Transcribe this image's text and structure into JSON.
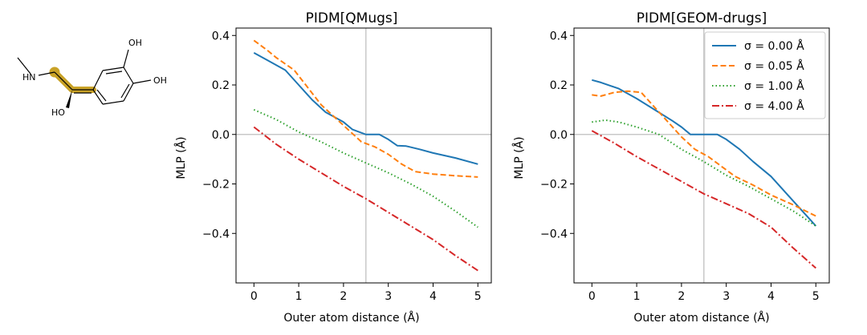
{
  "molecule": {
    "labels": [
      "OH",
      "OH",
      "HN",
      "HO"
    ],
    "highlight_color": "#c9a227"
  },
  "chart_data": [
    {
      "type": "line",
      "title": "PIDM[QMugs]",
      "xlabel": "Outer atom distance (Å)",
      "ylabel": "MLP (Å)",
      "xlim": [
        -0.4,
        5.3
      ],
      "ylim": [
        -0.6,
        0.43
      ],
      "xticks": [
        0,
        1,
        2,
        3,
        4,
        5
      ],
      "yticks": [
        -0.4,
        -0.2,
        0.0,
        0.2,
        0.4
      ],
      "reference_lines": {
        "x": 2.5,
        "y": 0.0
      },
      "legend": false,
      "series": [
        {
          "color": "#1f77b4",
          "dash": "solid",
          "x": [
            0,
            0.3,
            0.7,
            1.0,
            1.3,
            1.6,
            2.0,
            2.2,
            2.5,
            2.8,
            3.0,
            3.2,
            3.4,
            3.7,
            4.0,
            4.5,
            5.0
          ],
          "y": [
            0.33,
            0.3,
            0.26,
            0.2,
            0.14,
            0.09,
            0.05,
            0.02,
            0.0,
            0.0,
            -0.02,
            -0.045,
            -0.047,
            -0.06,
            -0.075,
            -0.095,
            -0.12
          ]
        },
        {
          "color": "#ff7f0e",
          "dash": "dashed",
          "x": [
            0,
            0.3,
            0.5,
            0.9,
            1.2,
            1.5,
            1.8,
            2.1,
            2.4,
            2.7,
            3.0,
            3.3,
            3.6,
            4.0,
            4.5,
            5.0
          ],
          "y": [
            0.38,
            0.34,
            0.31,
            0.26,
            0.19,
            0.12,
            0.07,
            0.02,
            -0.03,
            -0.05,
            -0.08,
            -0.12,
            -0.15,
            -0.16,
            -0.167,
            -0.172
          ]
        },
        {
          "color": "#2ca02c",
          "dash": "dotted",
          "x": [
            0,
            0.5,
            1.0,
            1.5,
            2.0,
            2.5,
            3.0,
            3.5,
            4.0,
            4.5,
            5.0
          ],
          "y": [
            0.1,
            0.06,
            0.01,
            -0.03,
            -0.075,
            -0.115,
            -0.155,
            -0.2,
            -0.25,
            -0.31,
            -0.375
          ]
        },
        {
          "color": "#d62728",
          "dash": "dashdot",
          "x": [
            0,
            0.5,
            1.0,
            1.5,
            2.0,
            2.5,
            3.0,
            3.5,
            4.0,
            4.5,
            5.0
          ],
          "y": [
            0.03,
            -0.04,
            -0.1,
            -0.155,
            -0.21,
            -0.26,
            -0.315,
            -0.37,
            -0.425,
            -0.49,
            -0.55
          ]
        }
      ]
    },
    {
      "type": "line",
      "title": "PIDM[GEOM-drugs]",
      "xlabel": "Outer atom distance (Å)",
      "ylabel": "MLP (Å)",
      "xlim": [
        -0.4,
        5.3
      ],
      "ylim": [
        -0.6,
        0.43
      ],
      "xticks": [
        0,
        1,
        2,
        3,
        4,
        5
      ],
      "yticks": [
        -0.4,
        -0.2,
        0.0,
        0.2,
        0.4
      ],
      "reference_lines": {
        "x": 2.5,
        "y": 0.0
      },
      "legend": true,
      "legend_position": "top-right",
      "series": [
        {
          "name": "σ = 0.00 Å",
          "color": "#1f77b4",
          "dash": "solid",
          "x": [
            0,
            0.2,
            0.6,
            1.0,
            1.4,
            1.8,
            2.0,
            2.2,
            2.5,
            2.8,
            3.0,
            3.3,
            3.6,
            4.0,
            4.4,
            4.8,
            5.0
          ],
          "y": [
            0.22,
            0.21,
            0.185,
            0.145,
            0.1,
            0.055,
            0.03,
            0.0,
            0.0,
            0.0,
            -0.02,
            -0.06,
            -0.11,
            -0.17,
            -0.25,
            -0.33,
            -0.37
          ]
        },
        {
          "name": "σ = 0.05 Å",
          "color": "#ff7f0e",
          "dash": "dashed",
          "x": [
            0,
            0.2,
            0.5,
            0.8,
            1.1,
            1.4,
            1.7,
            2.0,
            2.3,
            2.6,
            2.9,
            3.2,
            3.6,
            4.0,
            4.5,
            5.0
          ],
          "y": [
            0.16,
            0.155,
            0.17,
            0.175,
            0.17,
            0.11,
            0.05,
            -0.01,
            -0.06,
            -0.09,
            -0.13,
            -0.17,
            -0.205,
            -0.245,
            -0.285,
            -0.33
          ]
        },
        {
          "name": "σ = 1.00 Å",
          "color": "#2ca02c",
          "dash": "dotted",
          "x": [
            0,
            0.3,
            0.6,
            1.0,
            1.5,
            2.0,
            2.5,
            3.0,
            3.5,
            4.0,
            4.5,
            5.0
          ],
          "y": [
            0.05,
            0.058,
            0.05,
            0.03,
            0.0,
            -0.06,
            -0.11,
            -0.165,
            -0.21,
            -0.26,
            -0.31,
            -0.37
          ]
        },
        {
          "name": "σ = 4.00 Å",
          "color": "#d62728",
          "dash": "dashdot",
          "x": [
            0,
            0.5,
            1.0,
            1.5,
            2.0,
            2.5,
            3.0,
            3.5,
            4.0,
            4.5,
            5.0
          ],
          "y": [
            0.015,
            -0.035,
            -0.09,
            -0.14,
            -0.19,
            -0.24,
            -0.28,
            -0.32,
            -0.375,
            -0.46,
            -0.54
          ]
        }
      ]
    }
  ]
}
